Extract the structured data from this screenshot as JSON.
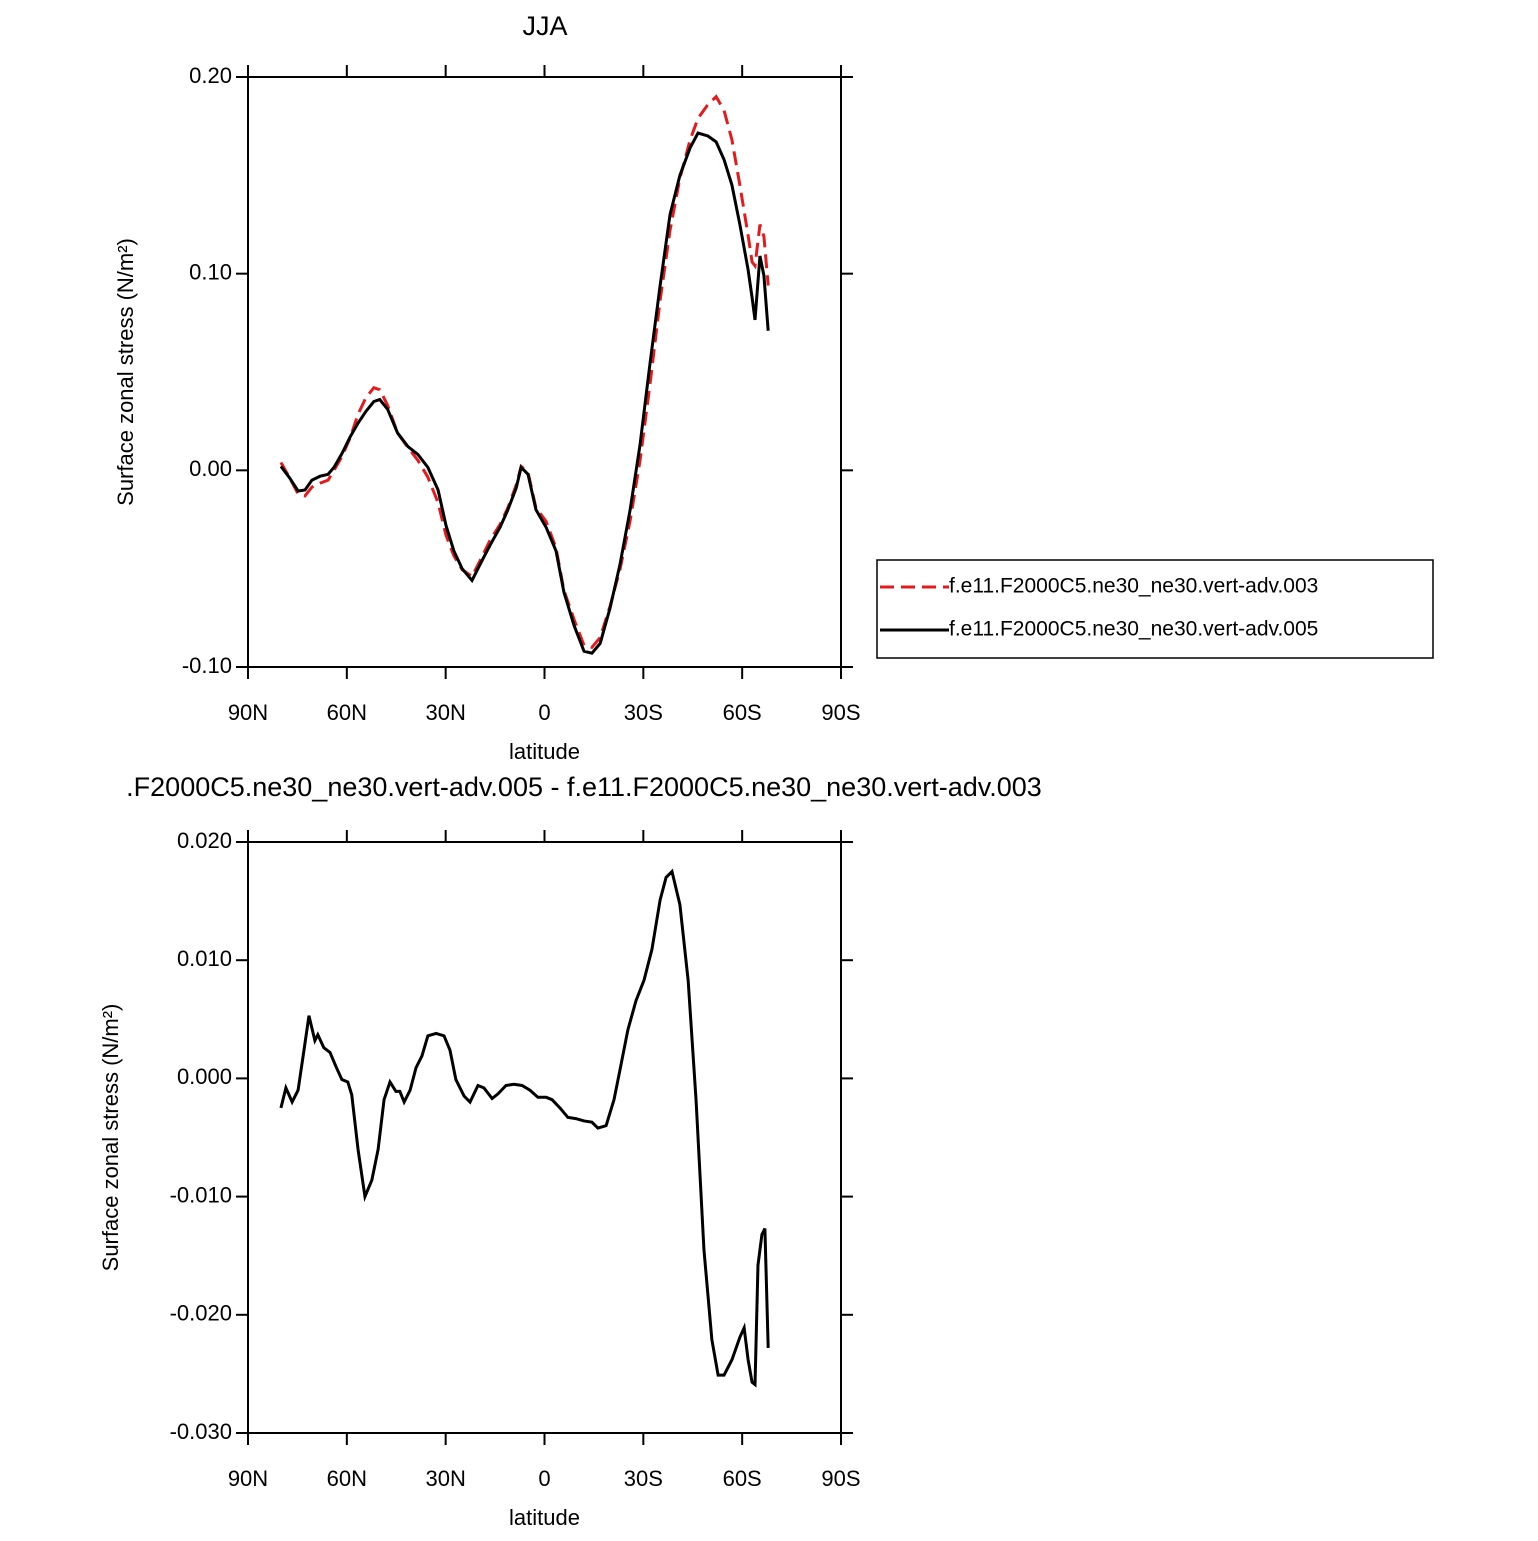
{
  "chart_data": [
    {
      "type": "line",
      "title": "JJA",
      "xlabel": "latitude",
      "ylabel": "Surface zonal stress (N/m²)",
      "xlim": [
        90,
        -90
      ],
      "xticks": [
        {
          "value": 90,
          "label": "90N"
        },
        {
          "value": 60,
          "label": "60N"
        },
        {
          "value": 30,
          "label": "30N"
        },
        0,
        {
          "value": -30,
          "label": "30S"
        },
        {
          "value": -60,
          "label": "60S"
        },
        {
          "value": -90,
          "label": "90S"
        }
      ],
      "ylim": [
        -0.1,
        0.2
      ],
      "yticks": [
        {
          "value": -0.1,
          "label": "-0.10"
        },
        {
          "value": 0,
          "label": "0.00"
        },
        {
          "value": 0.1,
          "label": "0.10"
        },
        {
          "value": 0.2,
          "label": "0.20"
        }
      ],
      "legend": "right",
      "x": [
        80.0,
        77.3,
        74.8,
        72.7,
        70.6,
        68.1,
        65.7,
        63.9,
        61.5,
        59.0,
        56.6,
        54.2,
        51.8,
        50.0,
        47.6,
        44.6,
        41.4,
        38.4,
        35.4,
        32.3,
        29.9,
        27.5,
        25.0,
        22.0,
        19.0,
        16.5,
        13.5,
        11.1,
        8.6,
        7.1,
        5.0,
        2.6,
        -0.5,
        -3.5,
        -5.9,
        -9.0,
        -12.0,
        -14.4,
        -16.9,
        -19.9,
        -22.9,
        -26.0,
        -29.0,
        -32.0,
        -35.1,
        -38.1,
        -41.1,
        -44.2,
        -46.6,
        -49.6,
        -52.1,
        -54.5,
        -56.9,
        -59.3,
        -61.8,
        -63.0,
        -63.9,
        -65.4,
        -66.6,
        -67.9
      ],
      "series": [
        {
          "name": "f.e11.F2000C5.ne30_ne30.vert-adv.003",
          "color": "#e41a1c",
          "dash": "dashed",
          "values": [
            0.004,
            -0.004,
            -0.012,
            -0.013,
            -0.0085,
            -0.0065,
            -0.005,
            0,
            0.007,
            0.0165,
            0.0285,
            0.037,
            0.042,
            0.041,
            0.033,
            0.019,
            0.0115,
            0.005,
            -0.0035,
            -0.0165,
            -0.033,
            -0.0435,
            -0.0505,
            -0.054,
            -0.044,
            -0.0355,
            -0.0275,
            -0.019,
            -0.0075,
            0.002,
            -0.001,
            -0.019,
            -0.026,
            -0.0395,
            -0.061,
            -0.076,
            -0.089,
            -0.09,
            -0.085,
            -0.069,
            -0.0505,
            -0.0255,
            0.005,
            0.0435,
            0.0865,
            0.122,
            0.1485,
            0.168,
            0.179,
            0.186,
            0.19,
            0.183,
            0.168,
            0.145,
            0.1195,
            0.106,
            0.104,
            0.125,
            0.119,
            0.094
          ]
        },
        {
          "name": "f.e11.F2000C5.ne30_ne30.vert-adv.005",
          "color": "#000000",
          "dash": "solid",
          "values": [
            0.002,
            -0.004,
            -0.0105,
            -0.01,
            -0.005,
            -0.003,
            -0.002,
            0.0015,
            0.0085,
            0.017,
            0.024,
            0.03,
            0.035,
            0.036,
            0.031,
            0.019,
            0.012,
            0.008,
            0.0015,
            -0.01,
            -0.028,
            -0.041,
            -0.05,
            -0.056,
            -0.046,
            -0.038,
            -0.029,
            -0.02,
            -0.009,
            0.0015,
            -0.002,
            -0.02,
            -0.029,
            -0.041,
            -0.062,
            -0.079,
            -0.092,
            -0.093,
            -0.088,
            -0.07,
            -0.048,
            -0.02,
            0.013,
            0.054,
            0.094,
            0.13,
            0.15,
            0.164,
            0.1715,
            0.17,
            0.167,
            0.158,
            0.145,
            0.125,
            0.102,
            0.088,
            0.0765,
            0.109,
            0.099,
            0.071
          ]
        }
      ]
    },
    {
      "type": "line",
      "title": ".F2000C5.ne30_ne30.vert-adv.005 - f.e11.F2000C5.ne30_ne30.vert-adv.003",
      "xlabel": "latitude",
      "ylabel": "Surface zonal stress (N/m²)",
      "xlim": [
        90,
        -90
      ],
      "xticks": [
        {
          "value": 90,
          "label": "90N"
        },
        {
          "value": 60,
          "label": "60N"
        },
        {
          "value": 30,
          "label": "30N"
        },
        0,
        {
          "value": -30,
          "label": "30S"
        },
        {
          "value": -60,
          "label": "60S"
        },
        {
          "value": -90,
          "label": "90S"
        }
      ],
      "ylim": [
        -0.03,
        0.02
      ],
      "yticks": [
        {
          "value": -0.03,
          "label": "-0.030"
        },
        {
          "value": -0.02,
          "label": "-0.020"
        },
        {
          "value": -0.01,
          "label": "-0.010"
        },
        {
          "value": 0,
          "label": "0.000"
        },
        {
          "value": 0.01,
          "label": "0.010"
        },
        {
          "value": 0.02,
          "label": "0.020"
        }
      ],
      "x": [
        80.0,
        78.5,
        76.6,
        74.8,
        73.0,
        71.5,
        69.7,
        68.8,
        67.0,
        65.1,
        63.3,
        61.5,
        59.7,
        58.5,
        56.6,
        54.5,
        52.4,
        50.5,
        48.7,
        46.9,
        45.1,
        43.9,
        42.6,
        40.8,
        39.0,
        37.2,
        35.4,
        32.9,
        30.5,
        28.7,
        26.9,
        24.4,
        22.6,
        20.2,
        18.4,
        15.9,
        14.1,
        11.7,
        9.3,
        6.8,
        4.4,
        2.0,
        -0.5,
        -2.3,
        -4.7,
        -7.1,
        -9.5,
        -12.0,
        -14.4,
        -16.2,
        -18.7,
        -21.1,
        -22.9,
        -25.3,
        -27.8,
        -30.2,
        -32.6,
        -35.1,
        -36.9,
        -38.7,
        -41.1,
        -43.6,
        -46.0,
        -48.4,
        -50.8,
        -52.7,
        -54.5,
        -56.9,
        -59.3,
        -60.6,
        -61.8,
        -63.0,
        -63.9,
        -64.8,
        -66.0,
        -66.9,
        -67.9
      ],
      "series": [
        {
          "color": "#000000",
          "dash": "solid",
          "values": [
            -0.0025,
            -0.0008,
            -0.002,
            -0.001,
            0.0024,
            0.0053,
            0.0032,
            0.0037,
            0.0026,
            0.0022,
            0.001,
            -0.0001,
            -0.0003,
            -0.0014,
            -0.006,
            -0.01,
            -0.0086,
            -0.006,
            -0.0018,
            -0.0003,
            -0.0011,
            -0.0011,
            -0.002,
            -0.001,
            0.0009,
            0.0019,
            0.0036,
            0.0038,
            0.0036,
            0.0024,
            -0.0001,
            -0.0015,
            -0.002,
            -0.0006,
            -0.0008,
            -0.0017,
            -0.0013,
            -0.0006,
            -0.0005,
            -0.0006,
            -0.001,
            -0.0016,
            -0.0016,
            -0.0018,
            -0.0025,
            -0.0033,
            -0.0034,
            -0.0036,
            -0.0037,
            -0.0042,
            -0.004,
            -0.0018,
            0.0007,
            0.0041,
            0.0066,
            0.0083,
            0.0109,
            0.0151,
            0.017,
            0.0175,
            0.0147,
            0.0083,
            -0.0018,
            -0.0145,
            -0.0221,
            -0.0251,
            -0.0251,
            -0.0238,
            -0.0219,
            -0.0211,
            -0.0238,
            -0.0257,
            -0.0259,
            -0.0158,
            -0.0132,
            -0.0127,
            -0.0228
          ]
        }
      ]
    }
  ]
}
